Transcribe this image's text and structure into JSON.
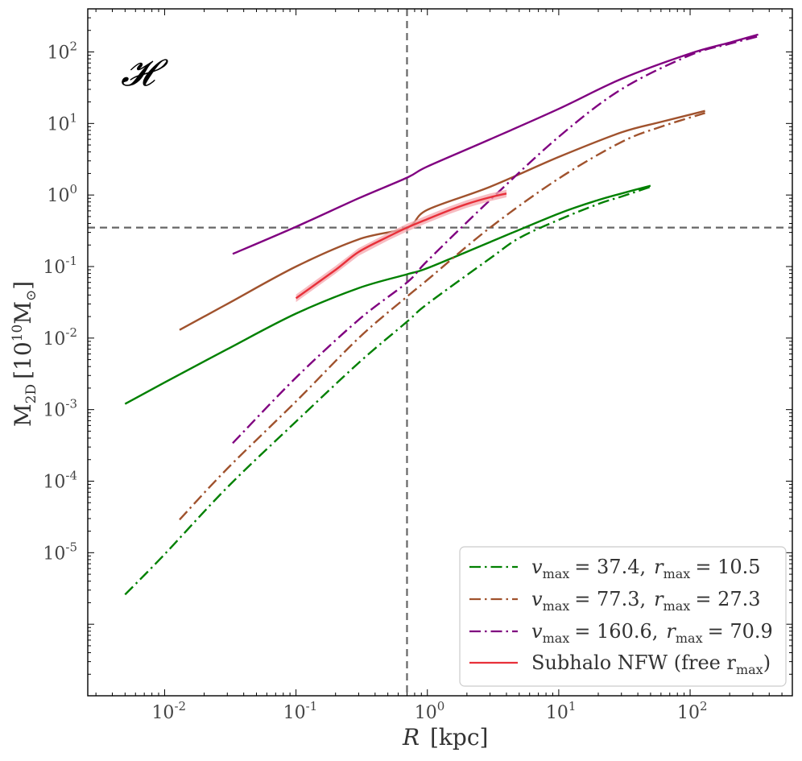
{
  "chart_data": {
    "type": "line",
    "panel_label": "𝓗",
    "xlabel_main": "R",
    "xlabel_unit": "[kpc]",
    "ylabel_main": "M",
    "ylabel_sub": "2D",
    "ylabel_unit_open": "[10",
    "ylabel_unit_exp": "10",
    "ylabel_unit_mass": "M",
    "ylabel_unit_sun": "⊙",
    "ylabel_unit_close": "]",
    "x_scale": "log",
    "y_scale": "log",
    "xlim": [
      0.0026,
      600
    ],
    "ylim": [
      1e-07,
      400
    ],
    "x_ticks": [
      {
        "value": 0.01,
        "base": "10",
        "exp": "-2"
      },
      {
        "value": 0.1,
        "base": "10",
        "exp": "-1"
      },
      {
        "value": 1,
        "base": "10",
        "exp": "0"
      },
      {
        "value": 10,
        "base": "10",
        "exp": "1"
      },
      {
        "value": 100,
        "base": "10",
        "exp": "2"
      }
    ],
    "y_ticks": [
      {
        "value": 1e-05,
        "base": "10",
        "exp": "-5"
      },
      {
        "value": 0.0001,
        "base": "10",
        "exp": "-4"
      },
      {
        "value": 0.001,
        "base": "10",
        "exp": "-3"
      },
      {
        "value": 0.01,
        "base": "10",
        "exp": "-2"
      },
      {
        "value": 0.1,
        "base": "10",
        "exp": "-1"
      },
      {
        "value": 1,
        "base": "10",
        "exp": "0"
      },
      {
        "value": 10,
        "base": "10",
        "exp": "1"
      },
      {
        "value": 100,
        "base": "10",
        "exp": "2"
      }
    ],
    "reference_lines": {
      "x": 0.7,
      "y": 0.35,
      "style": "dashed",
      "color": "#666666"
    },
    "colors": {
      "green": "#008000",
      "brown": "#a0522d",
      "purple": "#800080",
      "red": "#e8303a",
      "band": "#f4a6ac"
    },
    "series": [
      {
        "name": "green-solid",
        "color": "#008000",
        "dash": "solid",
        "x": [
          0.005,
          0.01,
          0.03,
          0.1,
          0.3,
          0.7,
          1,
          3,
          10,
          20,
          30,
          50
        ],
        "y": [
          0.0012,
          0.0024,
          0.007,
          0.022,
          0.05,
          0.078,
          0.095,
          0.22,
          0.55,
          0.85,
          1.05,
          1.35
        ]
      },
      {
        "name": "brown-solid",
        "color": "#a0522d",
        "dash": "solid",
        "x": [
          0.013,
          0.03,
          0.1,
          0.3,
          0.7,
          1,
          3,
          10,
          30,
          60,
          130
        ],
        "y": [
          0.013,
          0.03,
          0.1,
          0.24,
          0.35,
          0.62,
          1.3,
          3.4,
          7.5,
          10.5,
          15
        ]
      },
      {
        "name": "purple-solid",
        "color": "#800080",
        "dash": "solid",
        "x": [
          0.033,
          0.1,
          0.3,
          0.7,
          1,
          3,
          10,
          30,
          100,
          200,
          330
        ],
        "y": [
          0.15,
          0.36,
          0.9,
          1.75,
          2.5,
          6,
          16,
          42,
          95,
          135,
          175
        ]
      },
      {
        "name": "green-dashdot",
        "color": "#008000",
        "dash": "dashdot",
        "x": [
          0.005,
          0.01,
          0.03,
          0.1,
          0.3,
          0.7,
          1,
          3,
          5,
          10,
          20,
          30,
          50
        ],
        "y": [
          2.6e-06,
          9.5e-06,
          8.2e-05,
          0.00068,
          0.0045,
          0.017,
          0.03,
          0.13,
          0.25,
          0.45,
          0.75,
          0.95,
          1.3
        ]
      },
      {
        "name": "brown-dashdot",
        "color": "#a0522d",
        "dash": "dashdot",
        "x": [
          0.013,
          0.03,
          0.1,
          0.3,
          0.7,
          1,
          3,
          10,
          30,
          60,
          130
        ],
        "y": [
          2.9e-05,
          0.00015,
          0.0013,
          0.01,
          0.038,
          0.065,
          0.35,
          1.7,
          5.5,
          9,
          14
        ]
      },
      {
        "name": "purple-dashdot",
        "color": "#800080",
        "dash": "dashdot",
        "x": [
          0.033,
          0.1,
          0.3,
          0.7,
          1,
          3,
          10,
          30,
          100,
          200,
          330
        ],
        "y": [
          0.00034,
          0.0028,
          0.018,
          0.06,
          0.12,
          0.85,
          6.5,
          30,
          90,
          130,
          165
        ]
      },
      {
        "name": "red-subhalo",
        "color": "#e8303a",
        "dash": "solid",
        "band": true,
        "x": [
          0.1,
          0.2,
          0.3,
          0.5,
          0.7,
          1,
          1.5,
          2,
          3,
          4
        ],
        "y": [
          0.036,
          0.09,
          0.16,
          0.26,
          0.35,
          0.46,
          0.62,
          0.75,
          0.93,
          1.05
        ]
      }
    ],
    "legend": {
      "position": "lower-right",
      "entries": [
        {
          "color": "#008000",
          "dash": "dashdot",
          "v_sym": "v",
          "v_sub": "max",
          "v_val": "= 37.4,",
          "r_sym": "r",
          "r_sub": "max",
          "r_val": "= 10.5"
        },
        {
          "color": "#a0522d",
          "dash": "dashdot",
          "v_sym": "v",
          "v_sub": "max",
          "v_val": "= 77.3,",
          "r_sym": "r",
          "r_sub": "max",
          "r_val": "= 27.3"
        },
        {
          "color": "#800080",
          "dash": "dashdot",
          "v_sym": "v",
          "v_sub": "max",
          "v_val": "= 160.6,",
          "r_sym": "r",
          "r_sub": "max",
          "r_val": "= 70.9"
        }
      ],
      "subhalo_entry": {
        "color": "#e8303a",
        "dash": "solid",
        "text": "Subhalo NFW (free r",
        "sub": "max",
        "close": ")"
      }
    }
  }
}
